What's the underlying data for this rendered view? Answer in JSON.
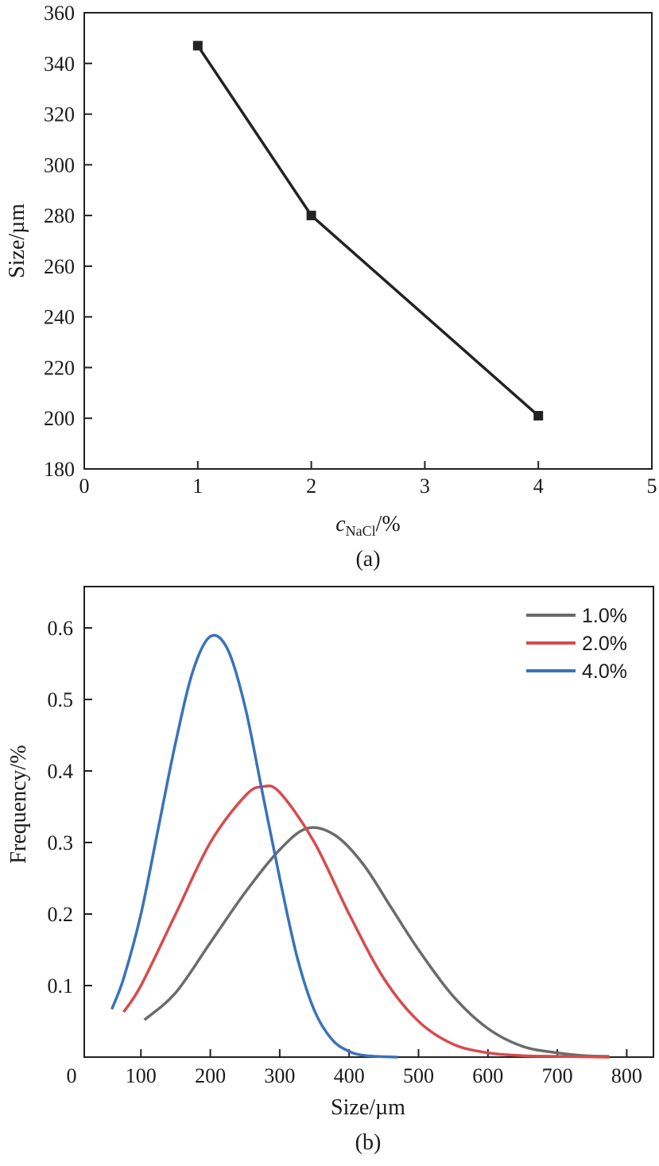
{
  "chart_data": [
    {
      "type": "line",
      "panel_label": "(a)",
      "xlabel_main": "c",
      "xlabel_sub": "NaCl",
      "xlabel_suffix": "/%",
      "ylabel": "Size/µm",
      "xlim": [
        0,
        5
      ],
      "ylim": [
        180,
        360
      ],
      "xticks": [
        0,
        1,
        2,
        3,
        4,
        5
      ],
      "yticks": [
        180,
        200,
        220,
        240,
        260,
        280,
        300,
        320,
        340,
        360
      ],
      "series": [
        {
          "name": "Size",
          "color": "#222222",
          "x": [
            1,
            2,
            4
          ],
          "y": [
            347,
            280,
            201
          ]
        }
      ]
    },
    {
      "type": "line",
      "panel_label": "(b)",
      "xlabel": "Size/µm",
      "ylabel": "Frequency/%",
      "xlim": [
        0,
        830
      ],
      "ylim": [
        0,
        0.65
      ],
      "xticks": [
        0,
        100,
        200,
        300,
        400,
        500,
        600,
        700,
        800
      ],
      "yticks": [
        0.1,
        0.2,
        0.3,
        0.4,
        0.5,
        0.6
      ],
      "legend": {
        "position": "top-right"
      },
      "series": [
        {
          "name": "1.0%",
          "color": "#6b6b6b",
          "x": [
            105,
            150,
            200,
            250,
            300,
            340,
            380,
            420,
            460,
            500,
            550,
            600,
            650,
            700,
            740,
            775
          ],
          "y": [
            0.052,
            0.09,
            0.16,
            0.23,
            0.29,
            0.32,
            0.31,
            0.27,
            0.21,
            0.15,
            0.085,
            0.04,
            0.015,
            0.006,
            0.002,
            0.001
          ]
        },
        {
          "name": "2.0%",
          "color": "#d94a4e",
          "x": [
            75,
            100,
            150,
            200,
            250,
            275,
            300,
            350,
            400,
            450,
            500,
            550,
            600,
            650,
            700,
            775
          ],
          "y": [
            0.063,
            0.1,
            0.2,
            0.3,
            0.365,
            0.378,
            0.37,
            0.3,
            0.2,
            0.11,
            0.05,
            0.018,
            0.006,
            0.002,
            0.001,
            0.0
          ]
        },
        {
          "name": "4.0%",
          "color": "#3a73b8",
          "x": [
            58,
            75,
            100,
            125,
            150,
            175,
            200,
            225,
            250,
            275,
            300,
            325,
            350,
            375,
            400,
            425,
            470
          ],
          "y": [
            0.067,
            0.11,
            0.2,
            0.32,
            0.44,
            0.54,
            0.588,
            0.57,
            0.49,
            0.37,
            0.25,
            0.14,
            0.065,
            0.025,
            0.008,
            0.002,
            0.0
          ]
        }
      ]
    }
  ]
}
